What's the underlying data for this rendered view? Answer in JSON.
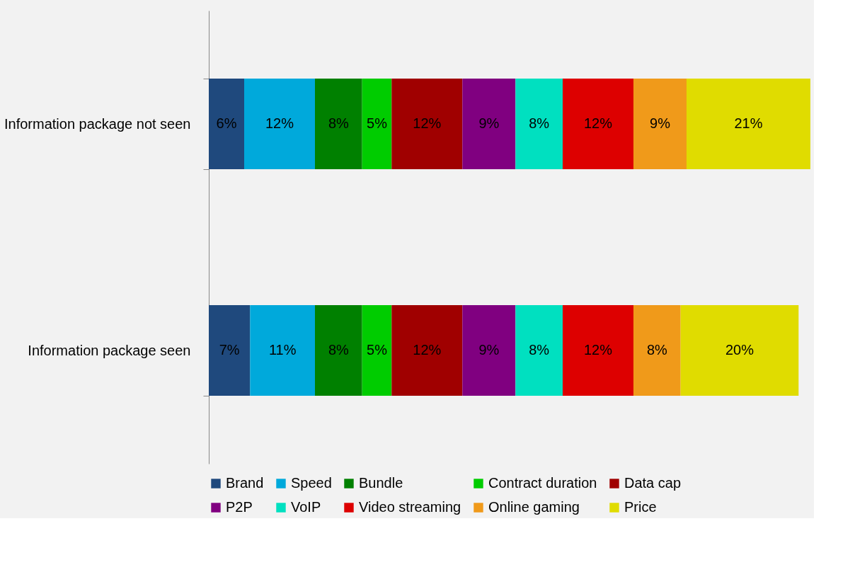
{
  "chart_data": {
    "type": "bar",
    "orientation": "horizontal",
    "stacked": true,
    "legend": "bottom",
    "tick_labels": "y",
    "categories": [
      "Information package not seen",
      "Information package seen"
    ],
    "series": [
      {
        "name": "Brand",
        "color": "#1f497d",
        "values": [
          6,
          7
        ],
        "value_labels": [
          "6%",
          "7%"
        ]
      },
      {
        "name": "Speed",
        "color": "#00a9db",
        "values": [
          12,
          11
        ],
        "value_labels": [
          "12%",
          "11%"
        ]
      },
      {
        "name": "Bundle",
        "color": "#008000",
        "values": [
          8,
          8
        ],
        "value_labels": [
          "8%",
          "8%"
        ]
      },
      {
        "name": "Contract duration",
        "color": "#00cc00",
        "values": [
          5,
          5
        ],
        "value_labels": [
          "5%",
          "5%"
        ]
      },
      {
        "name": "Data cap",
        "color": "#a00000",
        "values": [
          12,
          12
        ],
        "value_labels": [
          "12%",
          "12%"
        ]
      },
      {
        "name": "P2P",
        "color": "#800080",
        "values": [
          9,
          9
        ],
        "value_labels": [
          "9%",
          "9%"
        ]
      },
      {
        "name": "VoIP",
        "color": "#00e0c0",
        "values": [
          8,
          8
        ],
        "value_labels": [
          "8%",
          "8%"
        ]
      },
      {
        "name": "Video streaming",
        "color": "#dd0000",
        "values": [
          12,
          12
        ],
        "value_labels": [
          "12%",
          "12%"
        ]
      },
      {
        "name": "Online gaming",
        "color": "#f09a1a",
        "values": [
          9,
          8
        ],
        "value_labels": [
          "9%",
          "8%"
        ]
      },
      {
        "name": "Price",
        "color": "#e0dc00",
        "values": [
          21,
          20
        ],
        "value_labels": [
          "21%",
          "20%"
        ]
      }
    ]
  }
}
